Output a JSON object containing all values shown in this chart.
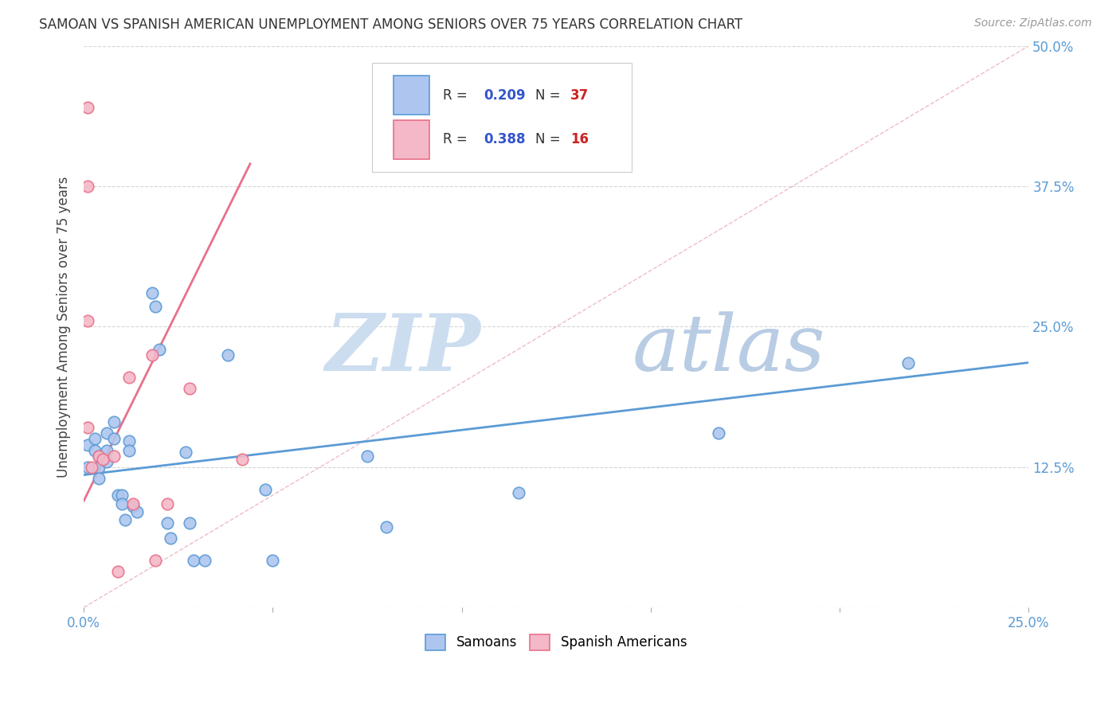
{
  "title": "SAMOAN VS SPANISH AMERICAN UNEMPLOYMENT AMONG SENIORS OVER 75 YEARS CORRELATION CHART",
  "source": "Source: ZipAtlas.com",
  "ylabel_label": "Unemployment Among Seniors over 75 years",
  "xlim": [
    0.0,
    0.25
  ],
  "ylim": [
    0.0,
    0.5
  ],
  "samoans_x": [
    0.001,
    0.001,
    0.003,
    0.003,
    0.004,
    0.004,
    0.004,
    0.006,
    0.006,
    0.006,
    0.008,
    0.008,
    0.009,
    0.01,
    0.01,
    0.011,
    0.012,
    0.012,
    0.013,
    0.014,
    0.018,
    0.019,
    0.02,
    0.022,
    0.023,
    0.027,
    0.028,
    0.029,
    0.032,
    0.038,
    0.048,
    0.05,
    0.075,
    0.08,
    0.115,
    0.168,
    0.218
  ],
  "samoans_y": [
    0.145,
    0.125,
    0.15,
    0.14,
    0.135,
    0.125,
    0.115,
    0.155,
    0.14,
    0.13,
    0.165,
    0.15,
    0.1,
    0.1,
    0.092,
    0.078,
    0.148,
    0.14,
    0.09,
    0.085,
    0.28,
    0.268,
    0.23,
    0.075,
    0.062,
    0.138,
    0.075,
    0.042,
    0.042,
    0.225,
    0.105,
    0.042,
    0.135,
    0.072,
    0.102,
    0.155,
    0.218
  ],
  "spanish_x": [
    0.001,
    0.001,
    0.001,
    0.001,
    0.002,
    0.004,
    0.005,
    0.008,
    0.009,
    0.012,
    0.013,
    0.018,
    0.019,
    0.022,
    0.028,
    0.042
  ],
  "spanish_y": [
    0.445,
    0.375,
    0.255,
    0.16,
    0.125,
    0.135,
    0.132,
    0.135,
    0.032,
    0.205,
    0.092,
    0.225,
    0.042,
    0.092,
    0.195,
    0.132
  ],
  "samoan_line_x": [
    0.0,
    0.25
  ],
  "samoan_line_y": [
    0.118,
    0.218
  ],
  "spanish_line_x": [
    0.0,
    0.044
  ],
  "spanish_line_y": [
    0.095,
    0.395
  ],
  "diagonal_line_x": [
    0.0,
    0.25
  ],
  "diagonal_line_y": [
    0.0,
    0.5
  ],
  "samoan_color": "#5b9bd5",
  "samoan_face": "#aec6ef",
  "spanish_color": "#e8718a",
  "spanish_face": "#f4b8c8",
  "legend_r_color": "#3355cc",
  "legend_n_color": "#cc2222",
  "marker_size": 110,
  "background_color": "#ffffff",
  "watermark_zip": "ZIP",
  "watermark_atlas": "atlas",
  "watermark_color": "#ccddf0"
}
